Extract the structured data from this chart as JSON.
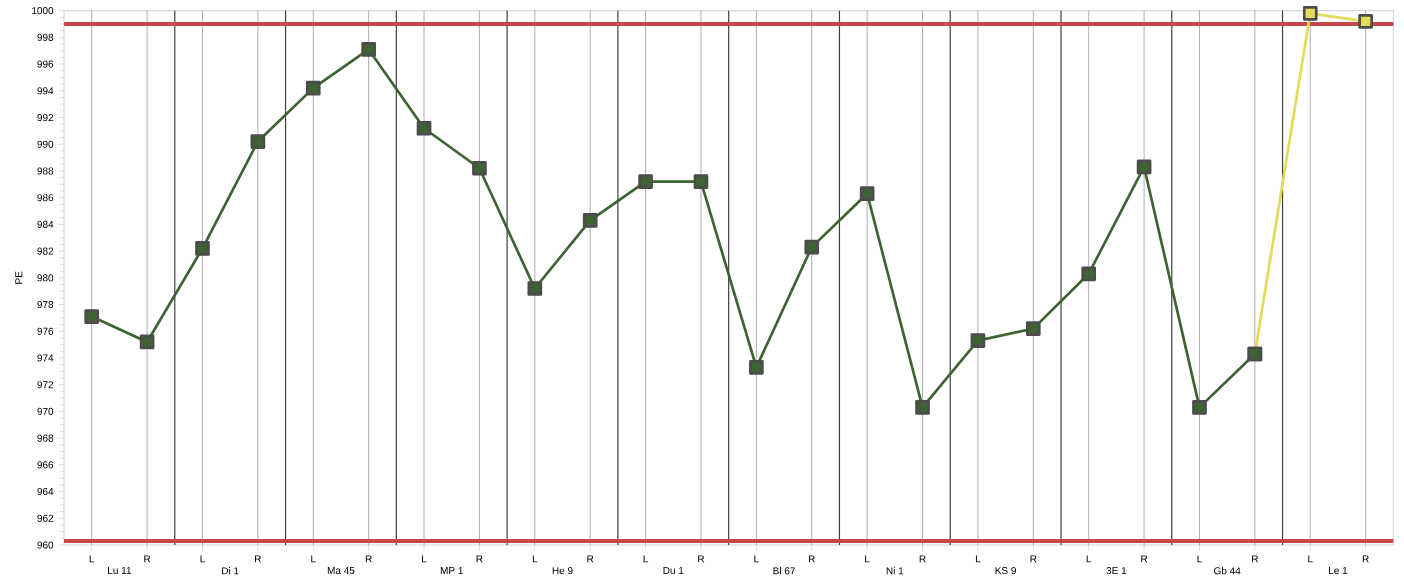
{
  "chart_data": {
    "type": "line",
    "ylabel": "PE",
    "categories": [
      "L",
      "R",
      "L",
      "R",
      "L",
      "R",
      "L",
      "R",
      "L",
      "R",
      "L",
      "R",
      "L",
      "R",
      "L",
      "R",
      "L",
      "R",
      "L",
      "R",
      "L",
      "R",
      "L",
      "R"
    ],
    "annotations": [
      "Lu 11",
      "Di 1",
      "Ma 45",
      "MP 1",
      "He 9",
      "Du 1",
      "Bl 67",
      "Ni 1",
      "KS 9",
      "3E 1",
      "Gb 44",
      "Le 1"
    ],
    "series": [
      {
        "color": "#e3dc5a",
        "values": [
          null,
          null,
          null,
          null,
          null,
          null,
          null,
          null,
          null,
          null,
          null,
          null,
          null,
          null,
          null,
          null,
          null,
          null,
          null,
          null,
          null,
          974.3,
          999.8,
          999.2
        ]
      },
      {
        "color": "#3e6332",
        "values": [
          977.1,
          975.2,
          982.2,
          990.2,
          994.2,
          997.1,
          991.2,
          988.2,
          979.2,
          984.3,
          987.2,
          987.2,
          973.3,
          982.3,
          986.3,
          970.3,
          975.3,
          976.2,
          980.3,
          988.3,
          970.3,
          974.3,
          null,
          null
        ]
      }
    ],
    "ylim": [
      960,
      1000
    ],
    "yticks": [
      960,
      962,
      964,
      966,
      968,
      970,
      972,
      974,
      976,
      978,
      980,
      982,
      984,
      986,
      988,
      990,
      992,
      994,
      996,
      998,
      1000
    ],
    "ref_lines": [
      {
        "axis": "y",
        "value": 999,
        "color": "#c8474a"
      },
      {
        "axis": "y",
        "value": 960.3,
        "color": "#c8474a"
      }
    ],
    "grid": "x",
    "marker": "square",
    "line_style": "solid"
  }
}
